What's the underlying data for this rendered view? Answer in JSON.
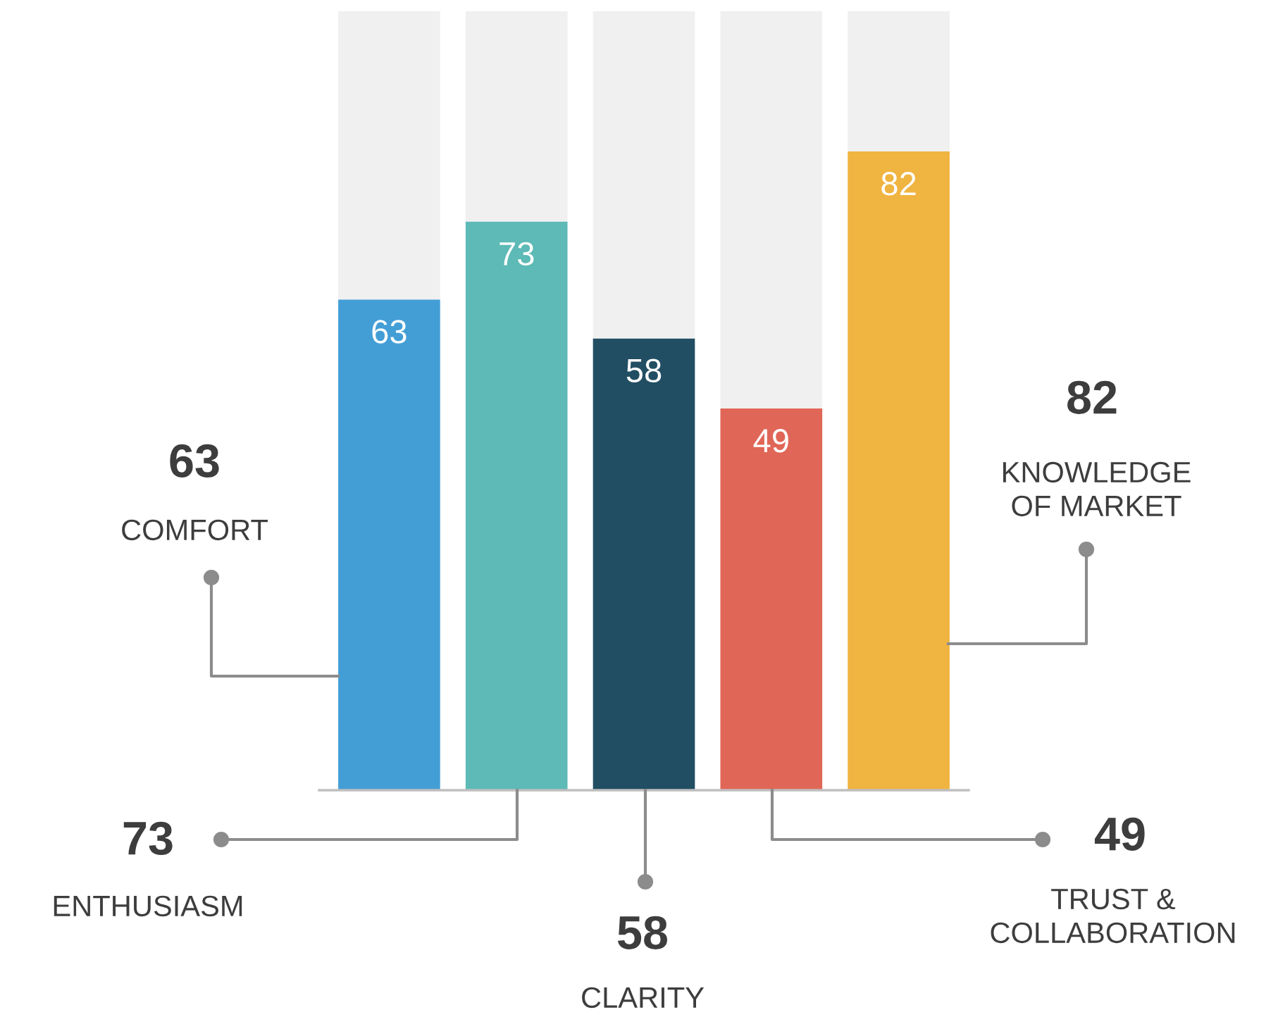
{
  "chart_data": {
    "type": "bar",
    "stacked": true,
    "categories": [
      null,
      null,
      null,
      null,
      null
    ],
    "annotations": [
      "COMFORT",
      "ENTHUSIASM",
      "CLARITY",
      "TRUST &\nCOLLABORATION",
      "KNOWLEDGE\nOF MARKET"
    ],
    "ylim": [
      0,
      100
    ],
    "series": [
      {
        "colors": [
          "#449ed6",
          "#5dbab6",
          "#214e63",
          "#e06657",
          "#f0b441"
        ],
        "values": [
          63,
          73,
          58,
          49,
          82
        ],
        "value_labels": [
          "63",
          "73",
          "58",
          "49",
          "82"
        ]
      },
      {
        "color": "#f0f0f0",
        "values": [
          37,
          27,
          42,
          51,
          18
        ]
      }
    ]
  }
}
